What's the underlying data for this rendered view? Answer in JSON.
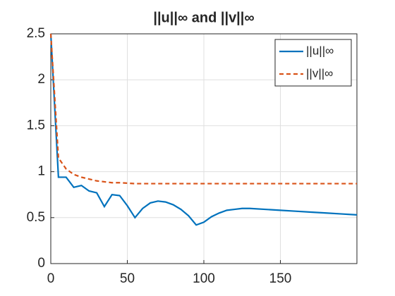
{
  "chart_data": {
    "type": "line",
    "title": "||u||∞ and ||v||∞",
    "x": [
      0,
      5,
      10,
      15,
      20,
      25,
      30,
      35,
      40,
      45,
      50,
      55,
      60,
      65,
      70,
      75,
      80,
      85,
      90,
      95,
      100,
      105,
      110,
      115,
      120,
      125,
      130,
      140,
      150,
      160,
      170,
      180,
      190,
      200
    ],
    "series": [
      {
        "name": "||u||∞",
        "color": "#0072bd",
        "dashed": false,
        "values": [
          2.5,
          0.94,
          0.94,
          0.83,
          0.85,
          0.79,
          0.77,
          0.62,
          0.75,
          0.74,
          0.63,
          0.5,
          0.6,
          0.66,
          0.68,
          0.67,
          0.64,
          0.59,
          0.52,
          0.42,
          0.45,
          0.51,
          0.55,
          0.58,
          0.59,
          0.6,
          0.6,
          0.59,
          0.58,
          0.57,
          0.56,
          0.55,
          0.54,
          0.53
        ]
      },
      {
        "name": "||v||∞",
        "color": "#d95319",
        "dashed": true,
        "values": [
          2.5,
          1.15,
          1.03,
          0.97,
          0.94,
          0.92,
          0.9,
          0.89,
          0.88,
          0.88,
          0.875,
          0.87,
          0.87,
          0.87,
          0.87,
          0.87,
          0.87,
          0.87,
          0.87,
          0.87,
          0.87,
          0.87,
          0.87,
          0.87,
          0.87,
          0.87,
          0.87,
          0.87,
          0.87,
          0.87,
          0.87,
          0.87,
          0.87,
          0.87
        ]
      }
    ],
    "xlim": [
      0,
      200
    ],
    "xticks": [
      0,
      50,
      100,
      150
    ],
    "ylim": [
      0,
      2.5
    ],
    "yticks": [
      0,
      0.5,
      1,
      1.5,
      2,
      2.5
    ],
    "grid": true,
    "legend": "northeast"
  }
}
